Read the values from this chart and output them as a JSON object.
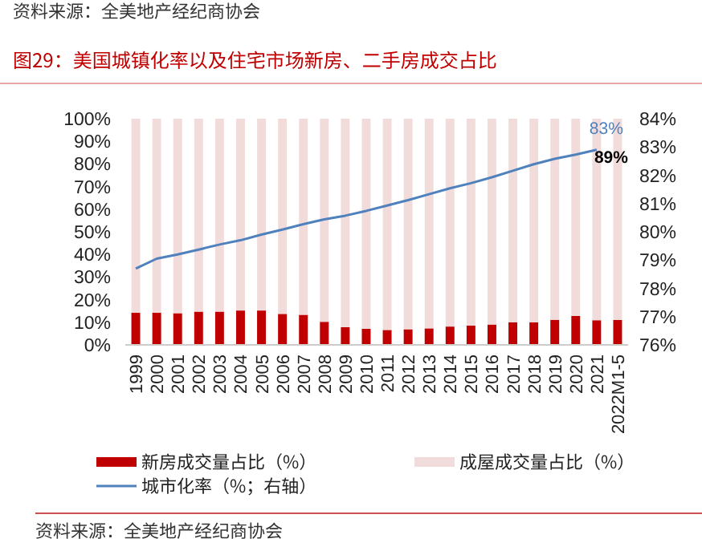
{
  "chart_data": {
    "type": "bar",
    "title": "图29：美国城镇化率以及住宅市场新房、二手房成交占比",
    "categories": [
      "1999",
      "2000",
      "2001",
      "2002",
      "2003",
      "2004",
      "2005",
      "2006",
      "2007",
      "2008",
      "2009",
      "2010",
      "2011",
      "2012",
      "2013",
      "2014",
      "2015",
      "2016",
      "2017",
      "2018",
      "2019",
      "2020",
      "2021",
      "2022M1-5"
    ],
    "series": [
      {
        "name": "新房成交量占比（%）",
        "color": "#c00000",
        "values": [
          14.2,
          14.2,
          14,
          14.7,
          14.7,
          15.2,
          15.2,
          13.7,
          13.3,
          10.2,
          7.8,
          7.1,
          6.6,
          6.9,
          7.3,
          8.1,
          8.5,
          9,
          10,
          10,
          11.1,
          12.8,
          10.9,
          11
        ]
      },
      {
        "name": "成屋成交量占比（%）",
        "color": "#f2dcdb",
        "values": [
          85.8,
          85.8,
          86,
          85.3,
          85.3,
          84.8,
          84.8,
          86.3,
          86.7,
          89.8,
          92.2,
          92.9,
          93.4,
          93.1,
          92.7,
          91.9,
          91.5,
          91,
          90,
          90,
          88.9,
          87.2,
          89.1,
          89
        ],
        "value_labels": [
          null,
          null,
          null,
          null,
          null,
          null,
          null,
          null,
          null,
          null,
          null,
          null,
          null,
          null,
          null,
          null,
          null,
          null,
          null,
          null,
          null,
          null,
          null,
          "89%"
        ]
      },
      {
        "name": "城市化率（%；右轴）",
        "type": "line",
        "axis": "y2",
        "color": "#4f81bd",
        "values": [
          78.7,
          79.05,
          79.2,
          79.37,
          79.55,
          79.7,
          79.9,
          80.08,
          80.27,
          80.44,
          80.57,
          80.74,
          80.93,
          81.12,
          81.33,
          81.54,
          81.72,
          81.93,
          82.16,
          82.39,
          82.58,
          82.73,
          82.9,
          null
        ],
        "value_labels": [
          null,
          null,
          null,
          null,
          null,
          null,
          null,
          null,
          null,
          null,
          null,
          null,
          null,
          null,
          null,
          null,
          null,
          null,
          null,
          null,
          null,
          null,
          "83%",
          null
        ]
      }
    ],
    "stacked": true,
    "ylim": [
      0,
      100
    ],
    "yticks": [
      {
        "value": 0,
        "label": "0%"
      },
      {
        "value": 10,
        "label": "10%"
      },
      {
        "value": 20,
        "label": "20%"
      },
      {
        "value": 30,
        "label": "30%"
      },
      {
        "value": 40,
        "label": "40%"
      },
      {
        "value": 50,
        "label": "50%"
      },
      {
        "value": 60,
        "label": "60%"
      },
      {
        "value": 70,
        "label": "70%"
      },
      {
        "value": 80,
        "label": "80%"
      },
      {
        "value": 90,
        "label": "90%"
      },
      {
        "value": 100,
        "label": "100%"
      }
    ],
    "y2lim": [
      76,
      84
    ],
    "y2ticks": [
      {
        "value": 76,
        "label": "76%"
      },
      {
        "value": 77,
        "label": "77%"
      },
      {
        "value": 78,
        "label": "78%"
      },
      {
        "value": 79,
        "label": "79%"
      },
      {
        "value": 80,
        "label": "80%"
      },
      {
        "value": 81,
        "label": "81%"
      },
      {
        "value": 82,
        "label": "82%"
      },
      {
        "value": 83,
        "label": "83%"
      },
      {
        "value": 84,
        "label": "84%"
      }
    ],
    "legend": "bottom",
    "marker": "none",
    "annotations": [
      "资料来源：全美地产经纪商协会",
      "资料来源：全美地产经纪商协会"
    ]
  }
}
